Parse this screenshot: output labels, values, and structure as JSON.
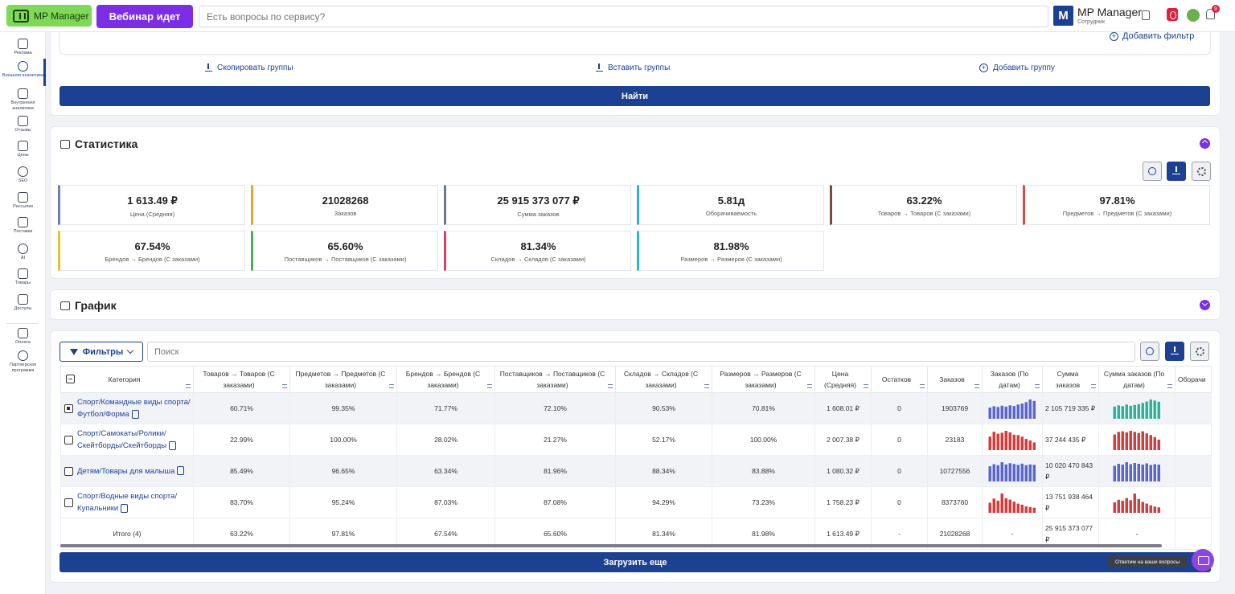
{
  "header": {
    "logo_label": "MP Manager",
    "webinar_label": "Вебинар идет",
    "search_placeholder": "Есть вопросы по сервису?",
    "avatar_letter": "M",
    "user_name": "MP Manager",
    "user_role": "Сотрудник",
    "notification_count": "9"
  },
  "sidebar": {
    "items": [
      {
        "label": "Реклама",
        "icon": "ads-icon"
      },
      {
        "label": "Внешняя аналитика",
        "icon": "external-analytics-icon"
      },
      {
        "label": "Внутренняя аналитика",
        "icon": "internal-analytics-icon"
      },
      {
        "label": "Отзывы",
        "icon": "reviews-icon"
      },
      {
        "label": "Цены",
        "icon": "ruble-icon"
      },
      {
        "label": "SEO",
        "icon": "seo-icon"
      },
      {
        "label": "Рассылки",
        "icon": "mail-icon"
      },
      {
        "label": "Поставки",
        "icon": "truck-icon"
      },
      {
        "label": "AI",
        "icon": "ai-icon"
      },
      {
        "label": "Товары",
        "icon": "box-icon"
      },
      {
        "label": "Доступы",
        "icon": "lock-icon"
      },
      {
        "label": "Оплата",
        "icon": "wallet-icon"
      },
      {
        "label": "Партнерская программа",
        "icon": "partners-icon"
      }
    ]
  },
  "filters": {
    "add_filter_label": "Добавить фильтр",
    "copy_groups_label": "Скопировать группы",
    "paste_groups_label": "Вставить группы",
    "add_group_label": "Добавить группу",
    "find_label": "Найти"
  },
  "statistics": {
    "title": "Статистика",
    "cards": [
      {
        "value": "1 613.49 ₽",
        "label": "Цена (Средняя)",
        "color": "#6a7fb5"
      },
      {
        "value": "21028268",
        "label": "Заказов",
        "color": "#f0a030"
      },
      {
        "value": "25 915 373 077 ₽",
        "label": "Сумма заказов",
        "color": "#6a7a8a"
      },
      {
        "value": "5.81д",
        "label": "Оборачиваемость",
        "color": "#2bb0d8"
      },
      {
        "value": "63.22%",
        "label": "Товаров → Товаров (С заказами)",
        "color": "#7a4a3a"
      },
      {
        "value": "97.81%",
        "label": "Предметов → Предметов (С заказами)",
        "color": "#e04848"
      },
      {
        "value": "67.54%",
        "label": "Брендов → Брендов (С заказами)",
        "color": "#e8c030"
      },
      {
        "value": "65.60%",
        "label": "Поставщиков → Поставщиков (С заказами)",
        "color": "#4aae5a"
      },
      {
        "value": "81.34%",
        "label": "Складов → Складов (С заказами)",
        "color": "#d8406a"
      },
      {
        "value": "81.98%",
        "label": "Размеров → Размеров (С заказами)",
        "color": "#2bb8c8"
      }
    ]
  },
  "graph": {
    "title": "График"
  },
  "table": {
    "filters_label": "Фильтры",
    "search_placeholder": "Поиск",
    "columns": [
      "Категория",
      "Товаров → Товаров (С заказами)",
      "Предметов → Предметов (С заказами)",
      "Брендов → Брендов (С заказами)",
      "Поставщиков → Поставщиков (С заказами)",
      "Складов → Складов (С заказами)",
      "Размеров → Размеров (С заказами)",
      "Цена (Средняя)",
      "Остатков",
      "Заказов",
      "Заказов (По датам)",
      "Сумма заказов",
      "Сумма заказов (По датам)",
      "Оборачи"
    ],
    "rows": [
      {
        "category": "Спорт/Командные виды спорта/Футбол/Форма",
        "checked": true,
        "goods": "60.71%",
        "subjects": "99.35%",
        "brands": "71.77%",
        "suppliers": "72.10%",
        "warehouses": "90.53%",
        "sizes": "70.81%",
        "price": "1 608.01 ₽",
        "stock": "0",
        "orders": "1903769",
        "sum": "2 105 719 335 ₽",
        "orders_spark": [
          55,
          62,
          58,
          64,
          60,
          66,
          63,
          70,
          75,
          82,
          95,
          88
        ],
        "orders_color": "#5b67c8",
        "sum_spark": [
          60,
          66,
          62,
          70,
          64,
          68,
          72,
          78,
          85,
          95,
          90,
          84
        ],
        "sum_color": "#2ab59a"
      },
      {
        "category": "Спорт/Самокаты/Ролики/Скейтборды/Скейтборды",
        "checked": false,
        "goods": "22.99%",
        "subjects": "100.00%",
        "brands": "28.02%",
        "suppliers": "21.27%",
        "warehouses": "52.17%",
        "sizes": "100.00%",
        "price": "2 007.38 ₽",
        "stock": "0",
        "orders": "23183",
        "sum": "37 244 435 ₽",
        "orders_spark": [
          70,
          95,
          85,
          90,
          100,
          92,
          80,
          78,
          70,
          58,
          50,
          40
        ],
        "orders_color": "#d63c3c",
        "sum_spark": [
          60,
          70,
          72,
          68,
          74,
          70,
          66,
          72,
          64,
          58,
          50,
          40
        ],
        "sum_color": "#d63c3c"
      },
      {
        "category": "Детям/Товары для малыша",
        "checked": false,
        "goods": "85.49%",
        "subjects": "96.65%",
        "brands": "63.34%",
        "suppliers": "81.96%",
        "warehouses": "88.34%",
        "sizes": "83.88%",
        "price": "1 080.32 ₽",
        "stock": "0",
        "orders": "10727556",
        "sum": "10 020 470 843 ₽",
        "orders_spark": [
          75,
          85,
          80,
          95,
          84,
          90,
          86,
          82,
          88,
          80,
          84,
          82
        ],
        "orders_color": "#5b67c8",
        "sum_spark": [
          78,
          88,
          84,
          96,
          86,
          92,
          88,
          84,
          90,
          82,
          86,
          84
        ],
        "sum_color": "#5b67c8"
      },
      {
        "category": "Спорт/Водные виды спорта/Купальники",
        "checked": false,
        "goods": "83.70%",
        "subjects": "95.24%",
        "brands": "87.03%",
        "suppliers": "87.08%",
        "warehouses": "94.29%",
        "sizes": "73.23%",
        "price": "1 758.23 ₽",
        "stock": "0",
        "orders": "8373760",
        "sum": "13 751 938 464 ₽",
        "orders_spark": [
          50,
          70,
          60,
          95,
          72,
          65,
          55,
          45,
          40,
          32,
          28,
          25
        ],
        "orders_color": "#d63c3c",
        "sum_spark": [
          50,
          62,
          58,
          70,
          60,
          92,
          66,
          52,
          44,
          36,
          30,
          26
        ],
        "sum_color": "#d63c3c"
      }
    ],
    "total": {
      "label": "Итого (4)",
      "goods": "63.22%",
      "subjects": "97.81%",
      "brands": "67.54%",
      "suppliers": "65.60%",
      "warehouses": "81.34%",
      "sizes": "81.98%",
      "price": "1 613.49 ₽",
      "stock": "-",
      "orders": "21028268",
      "orders_spark": "-",
      "sum": "25 915 373 077 ₽",
      "sum_spark": "-"
    },
    "load_more_label": "Загрузить еще"
  },
  "chat": {
    "tooltip": "Ответим на ваши вопросы"
  }
}
